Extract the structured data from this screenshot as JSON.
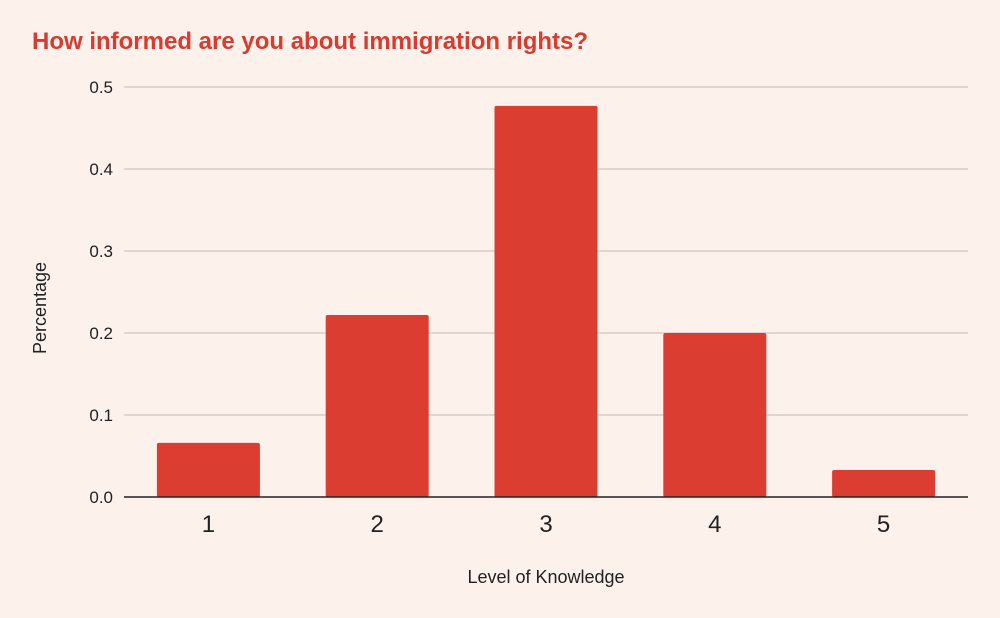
{
  "chart_data": {
    "type": "bar",
    "title": "How informed are you about immigration rights?",
    "xlabel": "Level of Knowledge",
    "ylabel": "Percentage",
    "categories": [
      "1",
      "2",
      "3",
      "4",
      "5"
    ],
    "values": [
      0.066,
      0.222,
      0.477,
      0.2,
      0.033
    ],
    "ylim": [
      0,
      0.5
    ],
    "yticks": [
      "0.0",
      "0.1",
      "0.2",
      "0.3",
      "0.4",
      "0.5"
    ],
    "grid": true,
    "legend": "none"
  },
  "colors": {
    "bar": "#db3e31",
    "title": "#d83b2f",
    "grid": "#c9b8b8",
    "axis": "#222222",
    "background": "#fdf1eb"
  }
}
